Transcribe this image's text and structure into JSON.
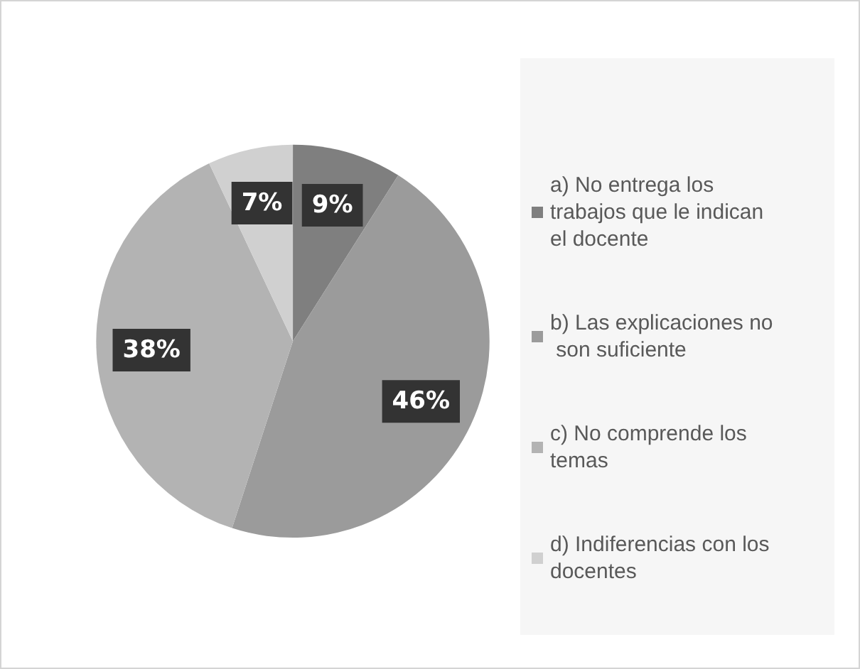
{
  "chart_data": {
    "type": "pie",
    "categories": [
      "a) No entrega los trabajos que le indican el docente",
      "b) Las explicaciones no son suficiente",
      "c) No comprende los temas",
      "d) Indiferencias con los docentes"
    ],
    "values": [
      9,
      46,
      38,
      7
    ],
    "colors": [
      "#7f7f7f",
      "#9b9b9b",
      "#b3b3b3",
      "#d0d0d0"
    ],
    "value_labels": [
      "9%",
      "46%",
      "38%",
      "7%"
    ],
    "legend": "right"
  }
}
